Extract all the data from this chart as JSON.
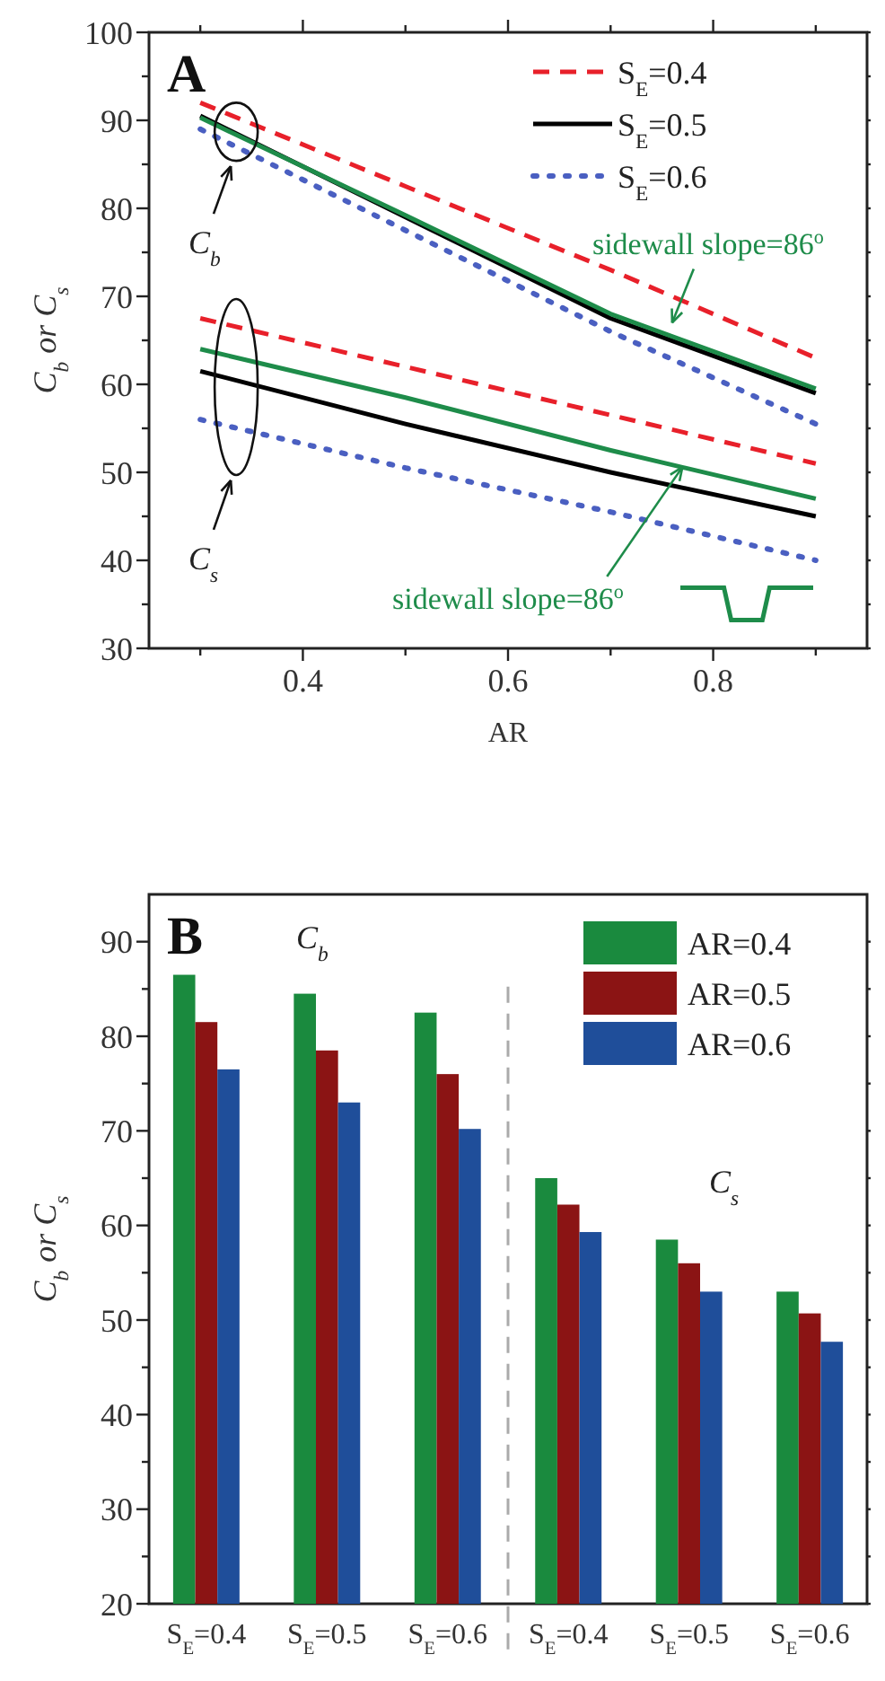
{
  "chart_data": [
    {
      "type": "line",
      "xlabel": "AR",
      "ylabel": "C$_{b}$ or C$_{s}$",
      "x": [
        0.3,
        0.5,
        0.7,
        0.9
      ],
      "xlim": [
        0.25,
        0.95
      ],
      "ylim": [
        30,
        100
      ],
      "xticks": [
        {
          "value": 0.3,
          "label": null
        },
        0.4,
        {
          "value": 0.5,
          "label": null
        },
        0.6,
        {
          "value": 0.7,
          "label": null
        },
        0.8,
        {
          "value": 0.9,
          "label": null
        }
      ],
      "yticks": [
        30,
        {
          "value": 35,
          "label": null
        },
        40,
        {
          "value": 45,
          "label": null
        },
        50,
        {
          "value": 55,
          "label": null
        },
        60,
        {
          "value": 65,
          "label": null
        },
        70,
        {
          "value": 75,
          "label": null
        },
        80,
        {
          "value": 85,
          "label": null
        },
        90,
        {
          "value": 95,
          "label": null
        },
        100
      ],
      "legend": "top right",
      "grid": false,
      "series": [
        {
          "name": "S$_{E}$=0.4",
          "color": "#e8202a",
          "line_style": "dashed",
          "values": [
            92,
            82.5,
            73,
            63
          ]
        },
        {
          "name": "S$_{E}$=0.5",
          "color": "#000000",
          "line_style": "solid",
          "values": [
            90.5,
            79,
            67.5,
            59
          ]
        },
        {
          "name": "S$_{E}$=0.6",
          "color": "#4a5fc1",
          "line_style": "dotted",
          "values": [
            89,
            77.5,
            66,
            55.5
          ]
        },
        {
          "color": "#1e8c4a",
          "line_style": "solid",
          "values": [
            90.3,
            79.2,
            68,
            59.5
          ]
        },
        {
          "color": "#e8202a",
          "line_style": "dashed",
          "values": [
            67.5,
            62,
            56.5,
            51
          ]
        },
        {
          "color": "#1e8c4a",
          "line_style": "solid",
          "values": [
            64,
            58.5,
            52.5,
            47
          ]
        },
        {
          "color": "#000000",
          "line_style": "solid",
          "values": [
            61.5,
            55.5,
            50,
            45
          ]
        },
        {
          "color": "#4a5fc1",
          "line_style": "dotted",
          "values": [
            56,
            50.5,
            45.5,
            40
          ]
        }
      ],
      "annotations": [
        "A",
        "C$_{b}$",
        "C$_{s}$",
        "sidewall slope=86$^{o}$",
        {
          "text": "sidewall slope=86$^{o}$",
          "x": 0.77,
          "y": 50.6
        }
      ]
    },
    {
      "type": "bar",
      "ylabel": "C$_{b}$ or C$_{s}$",
      "categories": [
        "S$_{E}$=0.4",
        "S$_{E}$=0.5",
        "S$_{E}$=0.6",
        "S$_{E}$=0.4",
        "S$_{E}$=0.5",
        "S$_{E}$=0.6"
      ],
      "ylim": [
        20,
        95
      ],
      "yticks": [
        20,
        {
          "value": 25,
          "label": null
        },
        30,
        {
          "value": 35,
          "label": null
        },
        40,
        {
          "value": 45,
          "label": null
        },
        50,
        {
          "value": 55,
          "label": null
        },
        60,
        {
          "value": 65,
          "label": null
        },
        70,
        {
          "value": 75,
          "label": null
        },
        80,
        {
          "value": 85,
          "label": null
        },
        90
      ],
      "legend": "top right",
      "grid": false,
      "series": [
        {
          "name": "AR=0.4",
          "color": "#1a8a3e",
          "values": [
            86.5,
            84.5,
            82.5,
            65,
            58.5,
            53
          ]
        },
        {
          "name": "AR=0.5",
          "color": "#8b1414",
          "values": [
            81.5,
            78.5,
            76,
            62.2,
            56,
            50.7
          ]
        },
        {
          "name": "AR=0.6",
          "color": "#1f4e9a",
          "values": [
            76.5,
            73,
            70.2,
            59.3,
            53,
            47.7
          ]
        }
      ],
      "annotations": [
        "B",
        "C$_{b}$",
        "C$_{s}$"
      ]
    }
  ]
}
